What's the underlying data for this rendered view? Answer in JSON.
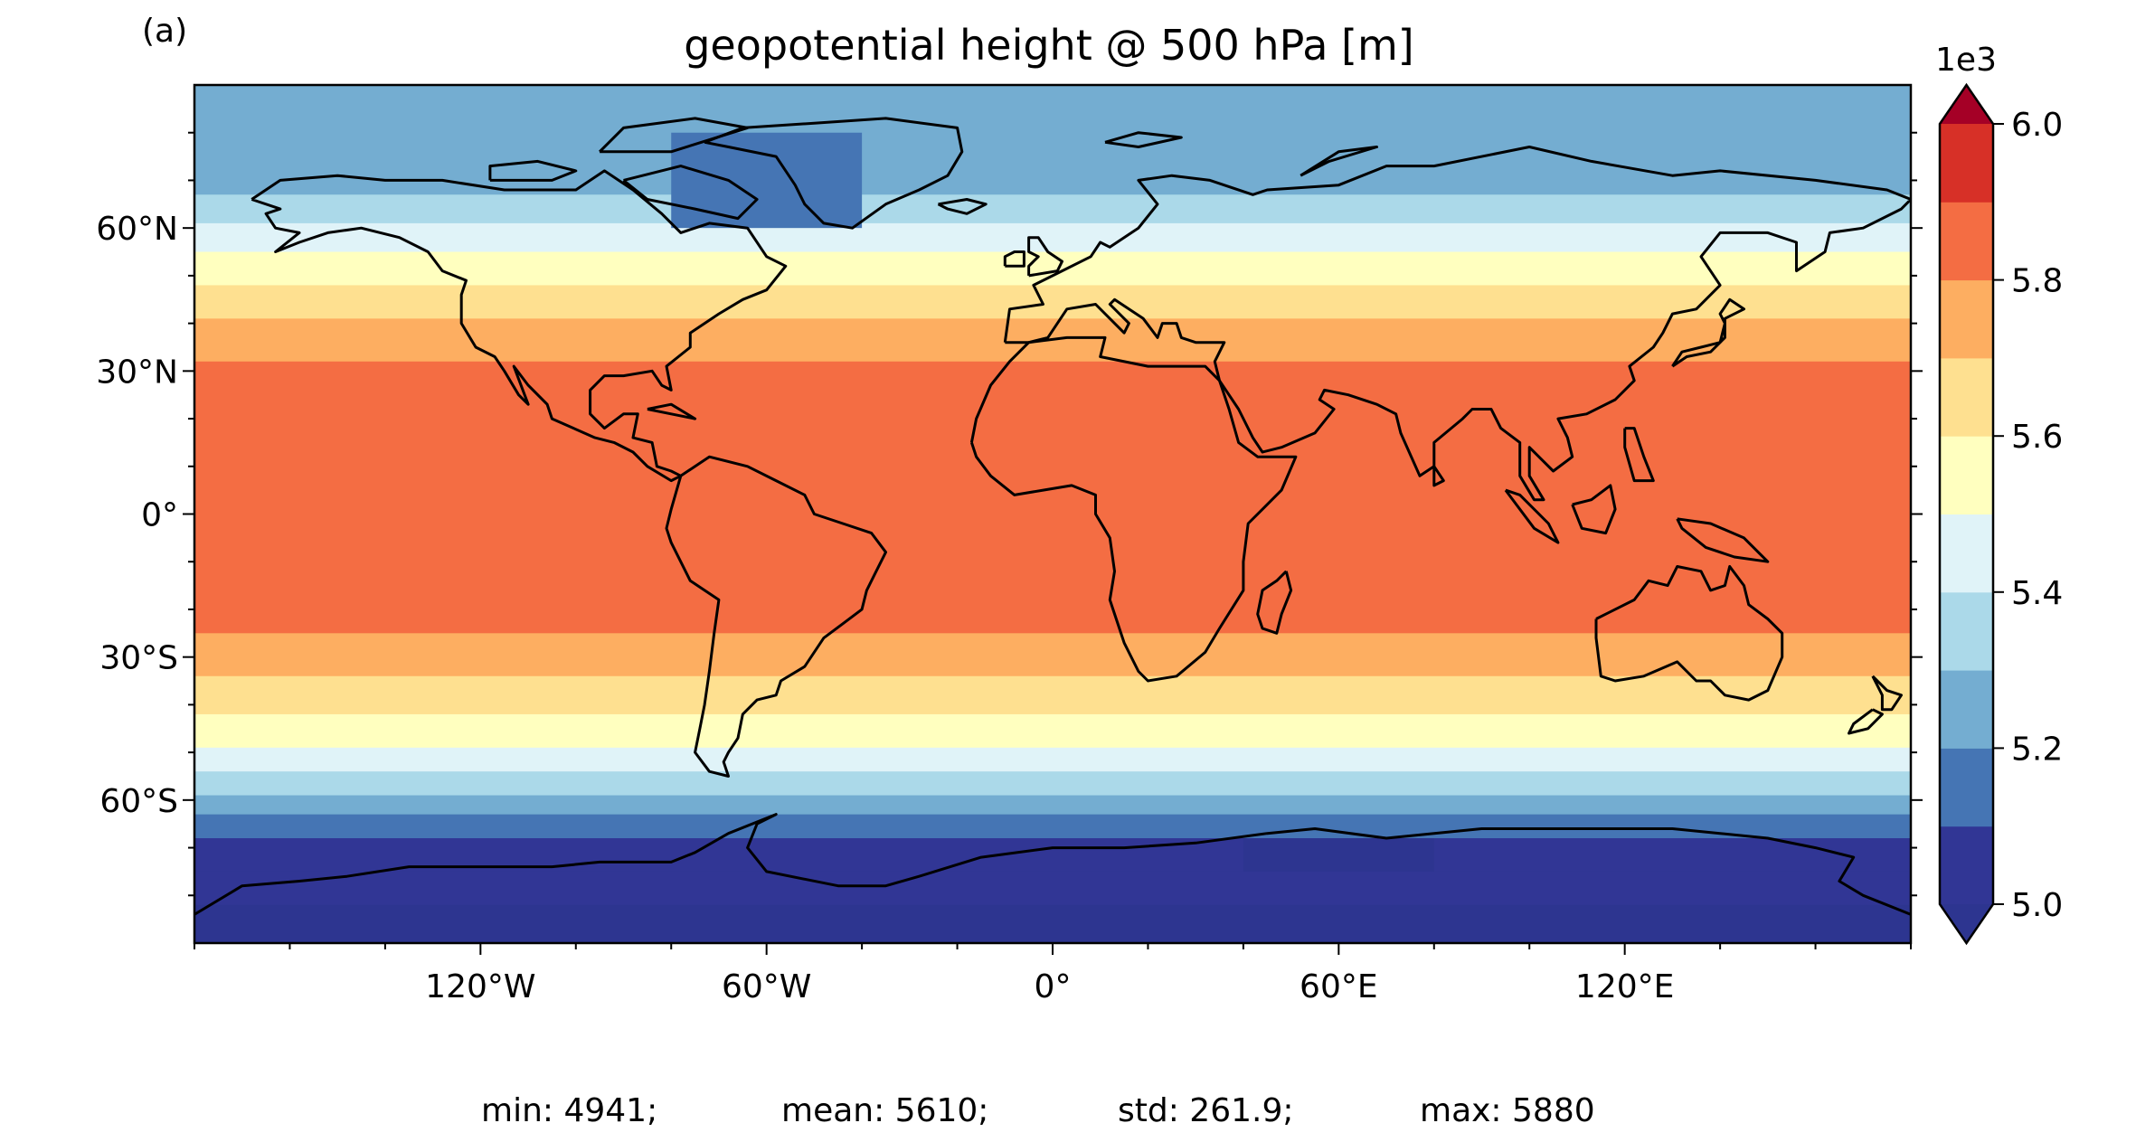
{
  "panel_label": "(a)",
  "chart_data": {
    "type": "heatmap",
    "title": "geopotential height @ 500 hPa [m]",
    "projection": "equirectangular",
    "xlim": [
      -180,
      180
    ],
    "ylim": [
      -90,
      90
    ],
    "x_ticks": [
      {
        "value": -120,
        "label": "120°W"
      },
      {
        "value": -60,
        "label": "60°W"
      },
      {
        "value": 0,
        "label": "0°"
      },
      {
        "value": 60,
        "label": "60°E"
      },
      {
        "value": 120,
        "label": "120°E"
      }
    ],
    "y_ticks": [
      {
        "value": 60,
        "label": "60°N"
      },
      {
        "value": 30,
        "label": "30°N"
      },
      {
        "value": 0,
        "label": "0°"
      },
      {
        "value": -30,
        "label": "30°S"
      },
      {
        "value": -60,
        "label": "60°S"
      }
    ],
    "colorbar": {
      "multiplier_label": "1e3",
      "levels": [
        5.0,
        5.1,
        5.2,
        5.3,
        5.4,
        5.5,
        5.6,
        5.7,
        5.8,
        5.9,
        6.0
      ],
      "colors": [
        "#313695",
        "#4575b4",
        "#74add1",
        "#abd9e9",
        "#e0f3f8",
        "#ffffbf",
        "#fee090",
        "#fdae61",
        "#f46d43",
        "#d73027"
      ],
      "under_color": "#2d3590",
      "over_color": "#a50026",
      "extend": "both",
      "ticks": [
        {
          "value": 5.0,
          "label": "5.0"
        },
        {
          "value": 5.2,
          "label": "5.2"
        },
        {
          "value": 5.4,
          "label": "5.4"
        },
        {
          "value": 5.6,
          "label": "5.6"
        },
        {
          "value": 5.8,
          "label": "5.8"
        },
        {
          "value": 6.0,
          "label": "6.0"
        }
      ]
    },
    "zonal_bands": [
      {
        "lat_min": 82,
        "lat_max": 90,
        "value": 5.25
      },
      {
        "lat_min": 67,
        "lat_max": 82,
        "value": 5.25
      },
      {
        "lat_min": 61,
        "lat_max": 67,
        "value": 5.35
      },
      {
        "lat_min": 55,
        "lat_max": 61,
        "value": 5.45
      },
      {
        "lat_min": 48,
        "lat_max": 55,
        "value": 5.55
      },
      {
        "lat_min": 41,
        "lat_max": 48,
        "value": 5.65
      },
      {
        "lat_min": 32,
        "lat_max": 41,
        "value": 5.75
      },
      {
        "lat_min": -25,
        "lat_max": 32,
        "value": 5.85
      },
      {
        "lat_min": -34,
        "lat_max": -25,
        "value": 5.75
      },
      {
        "lat_min": -42,
        "lat_max": -34,
        "value": 5.65
      },
      {
        "lat_min": -49,
        "lat_max": -42,
        "value": 5.55
      },
      {
        "lat_min": -54,
        "lat_max": -49,
        "value": 5.45
      },
      {
        "lat_min": -59,
        "lat_max": -54,
        "value": 5.35
      },
      {
        "lat_min": -63,
        "lat_max": -59,
        "value": 5.25
      },
      {
        "lat_min": -68,
        "lat_max": -63,
        "value": 5.15
      },
      {
        "lat_min": -75,
        "lat_max": -68,
        "value": 5.05
      },
      {
        "lat_min": -90,
        "lat_max": -75,
        "value": 4.95
      }
    ],
    "regional_patches": [
      {
        "lon_min": -80,
        "lon_max": -40,
        "lat_min": 60,
        "lat_max": 80,
        "value": 5.15
      },
      {
        "lon_min": 40,
        "lon_max": 80,
        "lat_min": -80,
        "lat_max": -68,
        "value": 4.95
      },
      {
        "lon_min": -180,
        "lon_max": 180,
        "lat_min": -82,
        "lat_max": -75,
        "value": 5.05
      }
    ],
    "stats": [
      {
        "label": "min: 4941;"
      },
      {
        "label": "mean: 5610;"
      },
      {
        "label": "std: 261.9;"
      },
      {
        "label": "max: 5880"
      }
    ]
  }
}
